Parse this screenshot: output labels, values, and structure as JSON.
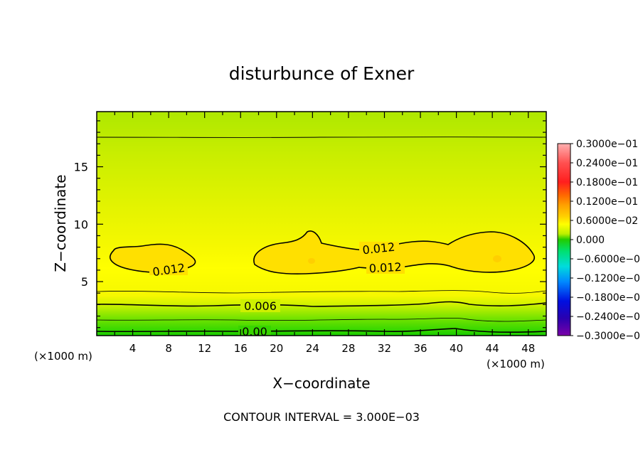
{
  "chart_data": {
    "type": "contour",
    "title": "disturbunce of Exner",
    "xlabel": "X−coordinate",
    "ylabel": "Z−coordinate",
    "x_unit_left": "(×1000 m)",
    "x_unit_right": "(×1000 m)",
    "xlim": [
      0,
      50
    ],
    "ylim": [
      0.3,
      19.8
    ],
    "x_ticks": [
      4,
      8,
      12,
      16,
      20,
      24,
      28,
      32,
      36,
      40,
      44,
      48
    ],
    "y_ticks": [
      5,
      10,
      15
    ],
    "contour_interval_text": "CONTOUR INTERVAL = 3.000E−03",
    "contour_labels": [
      {
        "text": "0.012",
        "x": 8.0,
        "z": 5.8
      },
      {
        "text": "0.012",
        "x": 31.0,
        "z": 7.2
      },
      {
        "text": "0.012",
        "x": 31.5,
        "z": 5.9
      },
      {
        "text": "0.006",
        "x": 18.0,
        "z": 2.7
      },
      {
        "text": "0.00",
        "x": 17.5,
        "z": 0.4
      }
    ],
    "colorbar": {
      "labels": [
        "0.3000e−01",
        "0.2400e−01",
        "0.1800e−01",
        "0.1200e−01",
        "0.6000e−02",
        "0.000",
        "−0.6000e−0",
        "−0.1200e−0",
        "−0.1800e−0",
        "−0.2400e−0",
        "−0.3000e−0"
      ],
      "colors": [
        "#ffb0b0",
        "#ff2020",
        "#ff7a00",
        "#ffcc00",
        "#ffff00",
        "#22cc00",
        "#00ee66",
        "#00dddd",
        "#0066ff",
        "#0000cc",
        "#7700aa"
      ]
    },
    "grid": false
  }
}
